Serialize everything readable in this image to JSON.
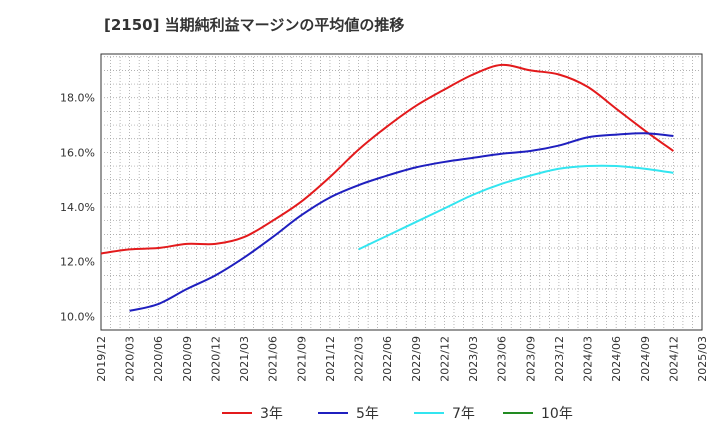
{
  "title": "[2150]  当期純利益マージンの平均値の推移",
  "chart_data": {
    "type": "line",
    "title": "[2150]  当期純利益マージンの平均値の推移",
    "xlabel": "",
    "ylabel": "",
    "ylim": [
      9.5,
      19.6
    ],
    "yticks": [
      10.0,
      12.0,
      14.0,
      16.0,
      18.0
    ],
    "ytick_labels": [
      "10.0%",
      "12.0%",
      "14.0%",
      "16.0%",
      "18.0%"
    ],
    "x_ticks": [
      "2019/12",
      "2020/03",
      "2020/06",
      "2020/09",
      "2020/12",
      "2021/03",
      "2021/06",
      "2021/09",
      "2021/12",
      "2022/03",
      "2022/06",
      "2022/09",
      "2022/12",
      "2023/03",
      "2023/06",
      "2023/09",
      "2023/12",
      "2024/03",
      "2024/06",
      "2024/09",
      "2024/12",
      "2025/03"
    ],
    "grid": true,
    "legend_position": "bottom",
    "series": [
      {
        "name": "3年",
        "color": "#e31a1c",
        "x": [
          "2019/12",
          "2020/03",
          "2020/06",
          "2020/09",
          "2020/12",
          "2021/03",
          "2021/06",
          "2021/09",
          "2021/12",
          "2022/03",
          "2022/06",
          "2022/09",
          "2022/12",
          "2023/03",
          "2023/06",
          "2023/09",
          "2023/12",
          "2024/03",
          "2024/06",
          "2024/09",
          "2024/12"
        ],
        "values": [
          12.3,
          12.45,
          12.5,
          12.65,
          12.65,
          12.9,
          13.5,
          14.2,
          15.1,
          16.1,
          16.95,
          17.7,
          18.3,
          18.85,
          19.2,
          19.0,
          18.85,
          18.4,
          17.6,
          16.8,
          16.05
        ]
      },
      {
        "name": "5年",
        "color": "#1f1fbf",
        "x": [
          "2020/03",
          "2020/06",
          "2020/09",
          "2020/12",
          "2021/03",
          "2021/06",
          "2021/09",
          "2021/12",
          "2022/03",
          "2022/06",
          "2022/09",
          "2022/12",
          "2023/03",
          "2023/06",
          "2023/09",
          "2023/12",
          "2024/03",
          "2024/06",
          "2024/09",
          "2024/12"
        ],
        "values": [
          10.2,
          10.45,
          11.0,
          11.5,
          12.15,
          12.9,
          13.7,
          14.35,
          14.8,
          15.15,
          15.45,
          15.65,
          15.8,
          15.95,
          16.05,
          16.25,
          16.55,
          16.65,
          16.7,
          16.6
        ]
      },
      {
        "name": "7年",
        "color": "#33e5f0",
        "x": [
          "2022/03",
          "2022/06",
          "2022/09",
          "2022/12",
          "2023/03",
          "2023/06",
          "2023/09",
          "2023/12",
          "2024/03",
          "2024/06",
          "2024/09",
          "2024/12"
        ],
        "values": [
          12.45,
          12.95,
          13.45,
          13.95,
          14.45,
          14.85,
          15.15,
          15.4,
          15.5,
          15.5,
          15.4,
          15.25
        ]
      },
      {
        "name": "10年",
        "color": "#228b22",
        "x": [],
        "values": []
      }
    ]
  }
}
